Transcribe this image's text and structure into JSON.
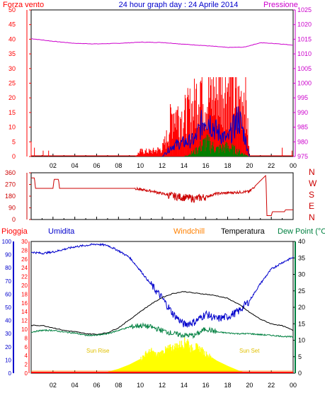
{
  "title": "24 hour graph day : 24 Aprile 2014",
  "colors": {
    "wind": "#ff0000",
    "pressure": "#cc00cc",
    "gust_blue": "#0000cc",
    "gust_green": "#008000",
    "direction": "#cc0000",
    "rain": "#ff0000",
    "humidity": "#0000cc",
    "windchill": "#ff8000",
    "temperature": "#000000",
    "dewpoint": "#008040",
    "solar": "#ffff00",
    "frame": "#000000",
    "title": "#0000cc"
  },
  "x_ticks": [
    "02",
    "04",
    "06",
    "08",
    "10",
    "12",
    "14",
    "16",
    "18",
    "20",
    "22",
    "00"
  ],
  "sun": {
    "rise_label": "Sun Rise",
    "set_label": "Sun Set"
  },
  "chart_data": [
    {
      "type": "line",
      "panel": "wind_pressure",
      "legend_left": "Forza vento",
      "legend_right": "Pressione",
      "y_left": {
        "ticks": [
          "0",
          "5",
          "10",
          "15",
          "20",
          "25",
          "30",
          "35",
          "40",
          "45",
          "50"
        ],
        "ylim": [
          0,
          50
        ]
      },
      "y_right": {
        "ticks": [
          "975",
          "980",
          "985",
          "990",
          "995",
          "1000",
          "1005",
          "1010",
          "1015",
          "1020",
          "1025"
        ],
        "ylim": [
          975,
          1025
        ]
      },
      "series": [
        {
          "name": "Pressione",
          "x": [
            0,
            2,
            4,
            6,
            8,
            10,
            12,
            14,
            16,
            18,
            19.5,
            21,
            22.5,
            24
          ],
          "values": [
            1015.2,
            1014.3,
            1013.6,
            1013.4,
            1013.6,
            1014.0,
            1013.9,
            1013.3,
            1012.8,
            1012.2,
            1012.3,
            1013.8,
            1013.5,
            1013.0
          ]
        },
        {
          "name": "Forza vento",
          "x": [
            0,
            9.5,
            10,
            11,
            12,
            12.5,
            13,
            14,
            15,
            15.5,
            16,
            17,
            18,
            19,
            19.6,
            20,
            24
          ],
          "values": [
            0,
            0,
            2,
            2,
            3,
            8,
            18,
            15,
            20,
            30,
            22,
            25,
            28,
            20,
            26,
            0,
            0
          ]
        },
        {
          "x": [
            12,
            13,
            14,
            15,
            16,
            17,
            18,
            19,
            19.5,
            20
          ],
          "values": [
            0,
            4,
            5,
            6,
            15,
            9,
            6,
            14,
            8,
            0
          ]
        },
        {
          "x": [
            14,
            15,
            16,
            17,
            18,
            19,
            20
          ],
          "values": [
            0,
            2,
            6,
            3,
            4,
            2,
            0
          ]
        }
      ]
    },
    {
      "type": "line",
      "panel": "wind_direction",
      "y_left": {
        "ticks": [
          "0",
          "90",
          "180",
          "270",
          "360"
        ],
        "ylim": [
          0,
          360
        ]
      },
      "y_right_labels": [
        "N",
        "W",
        "S",
        "E",
        "N"
      ],
      "series": [
        {
          "x": [
            0,
            0.3,
            0.4,
            2,
            2.1,
            2.5,
            2.6,
            3,
            3.1,
            9.5,
            10,
            11,
            12,
            13,
            14,
            15,
            16,
            17,
            18,
            19,
            20,
            21.5,
            21.6,
            22,
            22.1,
            23.2,
            23.3,
            24
          ],
          "values": [
            320,
            320,
            240,
            240,
            310,
            310,
            240,
            240,
            240,
            240,
            230,
            220,
            200,
            180,
            170,
            160,
            175,
            200,
            205,
            210,
            215,
            340,
            30,
            30,
            60,
            60,
            75,
            75
          ]
        }
      ]
    },
    {
      "type": "area",
      "panel": "temp_hum",
      "legend": [
        "Pioggia",
        "Umidita",
        "Windchill",
        "Temperatura",
        "Dew Point (°C"
      ],
      "y_hum": {
        "ticks": [
          "0",
          "10",
          "20",
          "30",
          "40",
          "50",
          "60",
          "70",
          "80",
          "90",
          "100"
        ],
        "ylim": [
          0,
          100
        ]
      },
      "y_rain": {
        "ticks": [
          "0",
          "2",
          "4",
          "6",
          "8",
          "10",
          "12",
          "14",
          "16",
          "18",
          "20",
          "22",
          "24",
          "26",
          "28",
          "30"
        ],
        "ylim": [
          0,
          30
        ]
      },
      "y_temp": {
        "ticks": [
          "0",
          "5",
          "10",
          "15",
          "20",
          "25",
          "30",
          "35",
          "40"
        ],
        "ylim": [
          0,
          40
        ]
      },
      "series": [
        {
          "name": "Umidita",
          "x": [
            0,
            1,
            2,
            3,
            4,
            5,
            6,
            7,
            8,
            9,
            10,
            11,
            12,
            13,
            14,
            15,
            16,
            17,
            18,
            19,
            20,
            21,
            22,
            23,
            24
          ],
          "values": [
            92,
            91,
            92,
            94,
            96,
            97,
            98,
            97,
            93,
            88,
            78,
            67,
            57,
            45,
            37,
            39,
            45,
            41,
            43,
            47,
            55,
            68,
            79,
            84,
            88
          ]
        },
        {
          "name": "Temperatura",
          "x": [
            0,
            1,
            2,
            3,
            4,
            5,
            6,
            7,
            8,
            9,
            10,
            11,
            12,
            13,
            14,
            15,
            16,
            17,
            18,
            19,
            20,
            21,
            22,
            23,
            24
          ],
          "values": [
            14.5,
            14.5,
            13.8,
            13,
            12.6,
            12,
            11.8,
            12.3,
            13.8,
            16.2,
            18.7,
            21,
            23,
            24.2,
            24.8,
            24.3,
            24,
            23.5,
            22.7,
            21,
            18.5,
            16.4,
            15,
            14.4,
            13
          ]
        },
        {
          "name": "Dew Point (°C",
          "x": [
            0,
            1,
            2,
            3,
            4,
            5,
            6,
            7,
            8,
            9,
            10,
            11,
            12,
            13,
            14,
            15,
            16,
            17,
            18,
            19,
            20,
            21,
            22,
            23,
            24
          ],
          "values": [
            12.5,
            13,
            13,
            12.5,
            12.2,
            11.5,
            11.5,
            12,
            13,
            14,
            14.5,
            14,
            13,
            12,
            11.5,
            11.5,
            13.5,
            12.5,
            12.2,
            12,
            12,
            11.7,
            11.5,
            11.2,
            11
          ]
        },
        {
          "name": "Solar",
          "x": [
            6.3,
            7,
            8,
            9,
            10,
            10.5,
            11,
            11.5,
            12,
            12.5,
            13,
            13.5,
            14,
            14.3,
            14.6,
            15,
            15.5,
            16,
            17,
            18,
            19,
            19.8
          ],
          "values": [
            0,
            0.4,
            1.3,
            2.6,
            4.3,
            6,
            6.8,
            5.5,
            6.5,
            7.5,
            7.9,
            8.6,
            9.2,
            10.5,
            7.5,
            8.2,
            7.4,
            6,
            3.8,
            2.2,
            0.8,
            0
          ]
        },
        {
          "name": "Pioggia",
          "x": [
            0,
            24
          ],
          "values": [
            0,
            0
          ]
        }
      ]
    }
  ]
}
